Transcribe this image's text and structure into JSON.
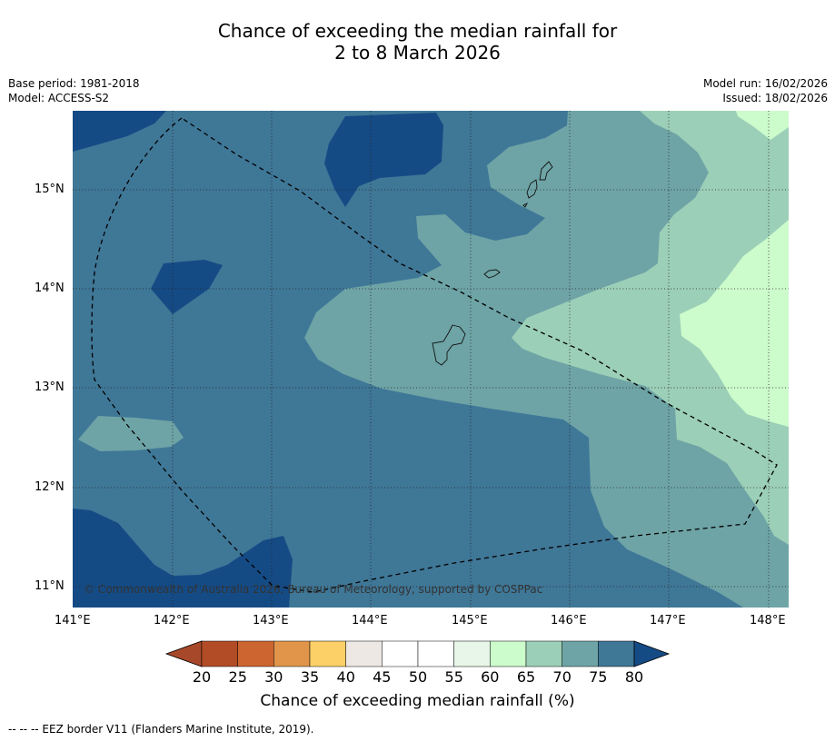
{
  "title": {
    "line1": "Chance of exceeding the median rainfall for",
    "line2": "2 to 8 March 2026"
  },
  "info_left": {
    "base_period": "Base period: 1981-2018",
    "model": "Model: ACCESS-S2"
  },
  "info_right": {
    "model_run": "Model run: 16/02/2026",
    "issued": "Issued: 18/02/2026"
  },
  "map": {
    "copyright": "© Commonwealth of Australia 2026, Bureau of Meteorology, supported by COSPPac",
    "lon_labels": [
      "141°E",
      "142°E",
      "143°E",
      "144°E",
      "145°E",
      "146°E",
      "147°E",
      "148°E"
    ],
    "lat_labels": [
      "15°N",
      "14°N",
      "13°N",
      "12°N",
      "11°N"
    ],
    "colors": {
      "c70_75": "#6ea4a6",
      "c75_80": "#3f7797",
      "c80_plus": "#154b85",
      "c65_70": "#9ccfb7",
      "c60_65": "#ccfbcc",
      "eez_line": "#000000",
      "grid": "#222222"
    }
  },
  "colorbar": {
    "ticks": [
      "20",
      "25",
      "30",
      "35",
      "40",
      "45",
      "50",
      "55",
      "60",
      "65",
      "70",
      "75",
      "80"
    ],
    "colors": [
      "#b24c27",
      "#cd6531",
      "#e1954a",
      "#fdcf67",
      "#ede8e3",
      "#ffffff",
      "#ffffff",
      "#e7f6e8",
      "#ccfbcc",
      "#9ccfb7",
      "#6ea4a6",
      "#3f7797"
    ],
    "low_color": "#a8482a",
    "high_color": "#154b85",
    "title": "Chance of exceeding median rainfall (%)"
  },
  "legend_note": "--  --  -- EEZ border V11 (Flanders Marine Institute, 2019)."
}
